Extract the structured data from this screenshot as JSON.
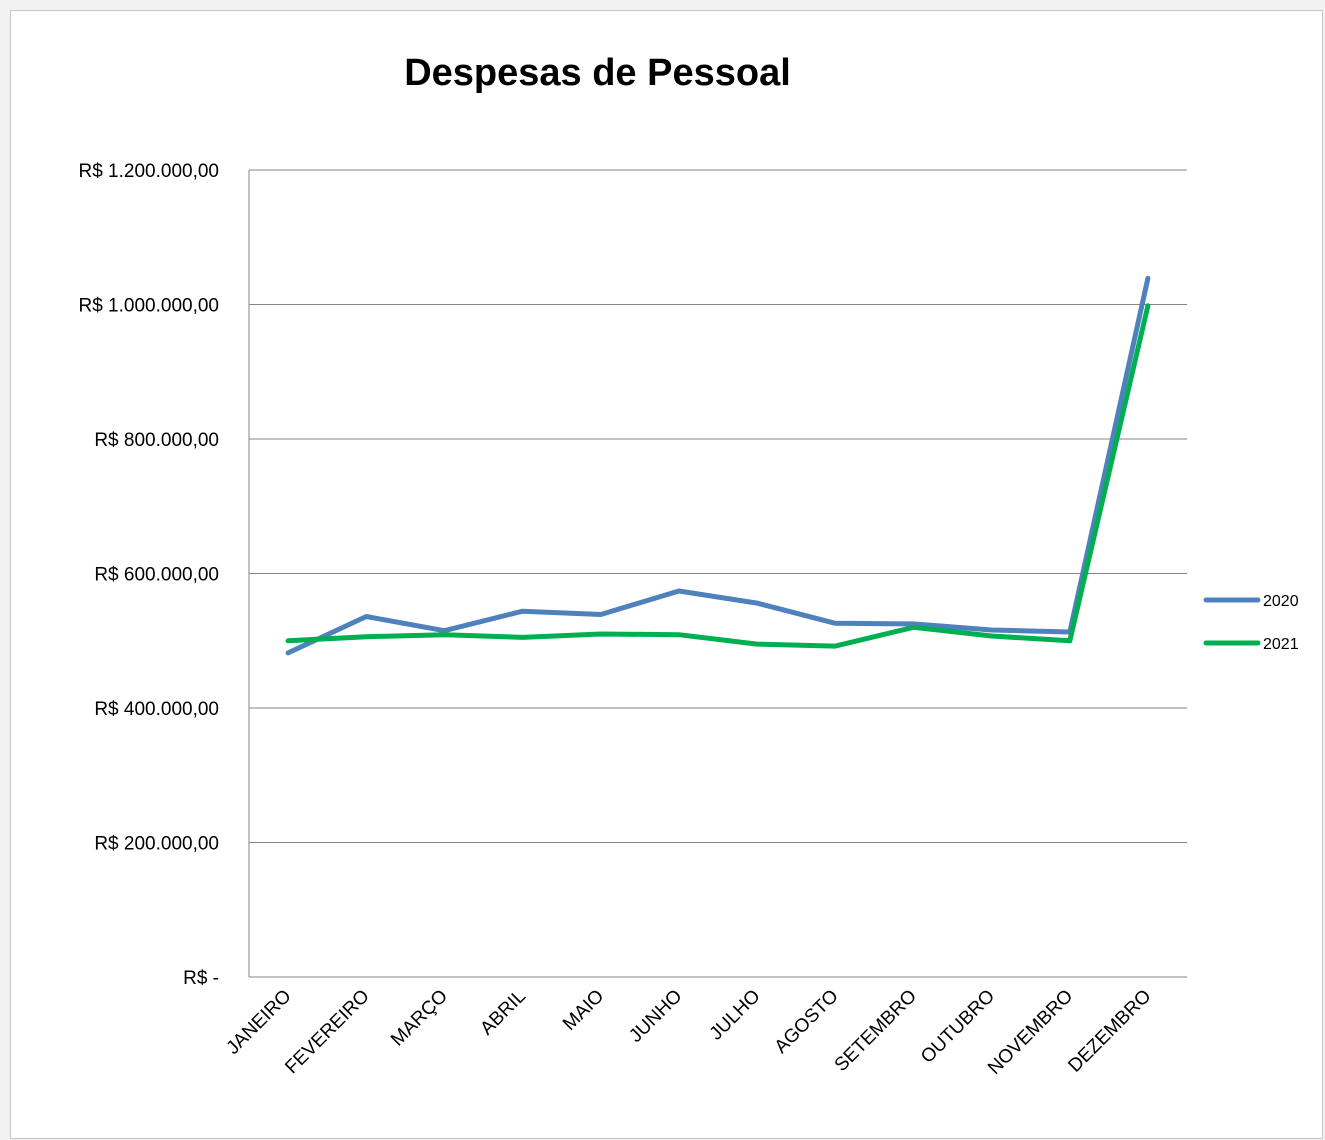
{
  "chart_data": {
    "type": "line",
    "title": "Despesas de Pessoal",
    "xlabel": "",
    "ylabel": "",
    "categories": [
      "JANEIRO",
      "FEVEREIRO",
      "MARÇO",
      "ABRIL",
      "MAIO",
      "JUNHO",
      "JULHO",
      "AGOSTO",
      "SETEMBRO",
      "OUTUBRO",
      "NOVEMBRO",
      "DEZEMBRO"
    ],
    "ylim": [
      0,
      1200000
    ],
    "y_ticks": [
      {
        "value": 0,
        "label": "R$ -"
      },
      {
        "value": 200000,
        "label": "R$ 200.000,00"
      },
      {
        "value": 400000,
        "label": "R$ 400.000,00"
      },
      {
        "value": 600000,
        "label": "R$ 600.000,00"
      },
      {
        "value": 800000,
        "label": "R$ 800.000,00"
      },
      {
        "value": 1000000,
        "label": "R$ 1.000.000,00"
      },
      {
        "value": 1200000,
        "label": "R$ 1.200.000,00"
      }
    ],
    "grid": true,
    "legend_position": "right",
    "series": [
      {
        "name": "2020",
        "color": "#4f81bd",
        "values": [
          482000,
          536000,
          515000,
          544000,
          539000,
          574000,
          556000,
          526000,
          525000,
          516000,
          513000,
          1039000
        ]
      },
      {
        "name": "2021",
        "color": "#00b050",
        "values": [
          500000,
          506000,
          509000,
          505000,
          510000,
          509000,
          495000,
          492000,
          520000,
          507000,
          500000,
          998000
        ]
      }
    ]
  }
}
